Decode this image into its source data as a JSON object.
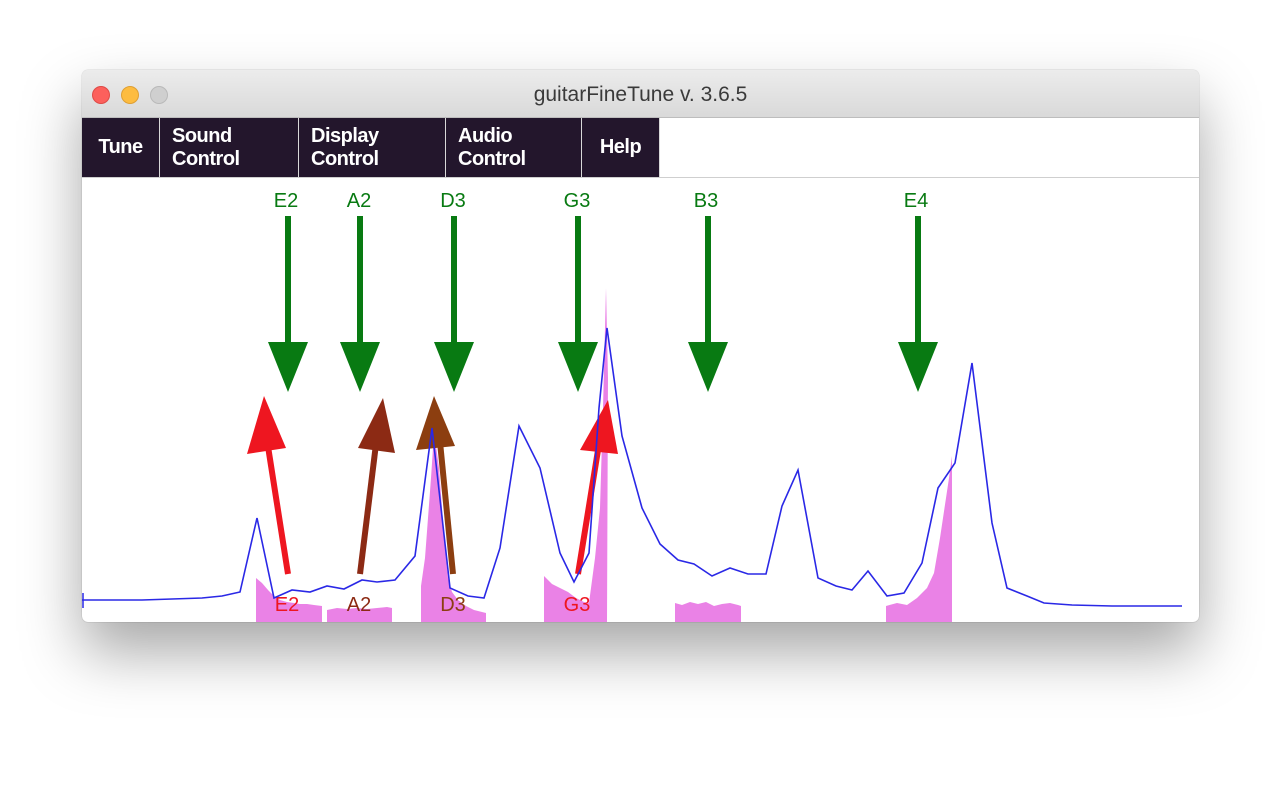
{
  "window": {
    "title": "guitarFineTune v. 3.6.5"
  },
  "menu": {
    "items": [
      {
        "label": "Tune"
      },
      {
        "label": "Sound Control"
      },
      {
        "label": "Display Control"
      },
      {
        "label": "Audio Control"
      },
      {
        "label": "Help"
      }
    ]
  },
  "colors": {
    "target_arrow": "#087a12",
    "spectrum_line": "#2a28e6",
    "spectrum_fill": "#ea82e6",
    "menu_bg": "#23162c",
    "detected_red": "#ee1620",
    "detected_brown": "#8c2a14"
  },
  "target_notes": [
    {
      "label": "E2"
    },
    {
      "label": "A2"
    },
    {
      "label": "D3"
    },
    {
      "label": "G3"
    },
    {
      "label": "B3"
    },
    {
      "label": "E4"
    }
  ],
  "detected_notes": [
    {
      "label": "E2",
      "color": "#ee1620"
    },
    {
      "label": "A2",
      "color": "#8c2a14"
    },
    {
      "label": "D3",
      "color": "#8c3e10"
    },
    {
      "label": "G3",
      "color": "#ee1620"
    }
  ]
}
